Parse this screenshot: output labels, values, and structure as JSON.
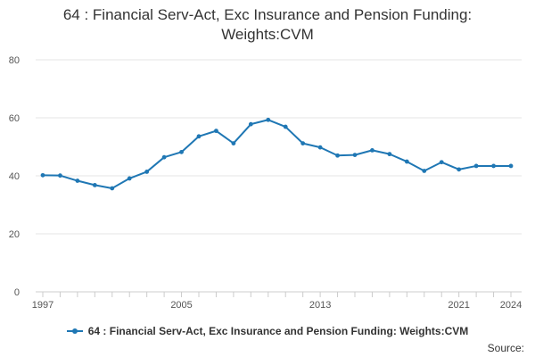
{
  "chart_data": {
    "type": "line",
    "title_line1": "64 : Financial Serv-Act, Exc Insurance and Pension Funding:",
    "title_line2": "Weights:CVM",
    "xlabel": "",
    "ylabel": "",
    "x_tick_labels": [
      "1997",
      "2005",
      "2013",
      "2021",
      "2024"
    ],
    "x_ticks": [
      1997,
      2005,
      2013,
      2021,
      2024
    ],
    "y_tick_labels": [
      "0",
      "20",
      "40",
      "60",
      "80"
    ],
    "y_ticks": [
      0,
      20,
      40,
      60,
      80
    ],
    "xlim": [
      1997,
      2024
    ],
    "ylim": [
      0,
      80
    ],
    "grid": "horizontal",
    "legend_position": "bottom",
    "series": [
      {
        "name": "64 : Financial Serv-Act, Exc Insurance and Pension Funding: Weights:CVM",
        "color": "#1f77b4",
        "x": [
          1997,
          1998,
          1999,
          2000,
          2001,
          2002,
          2003,
          2004,
          2005,
          2006,
          2007,
          2008,
          2009,
          2010,
          2011,
          2012,
          2013,
          2014,
          2015,
          2016,
          2017,
          2018,
          2019,
          2020,
          2021,
          2022,
          2023,
          2024
        ],
        "values": [
          40.2,
          40.1,
          38.3,
          36.8,
          35.7,
          39.1,
          41.4,
          46.4,
          48.2,
          53.6,
          55.5,
          51.2,
          57.8,
          59.3,
          56.9,
          51.2,
          49.8,
          47.0,
          47.2,
          48.8,
          47.5,
          44.9,
          41.7,
          44.7,
          42.2,
          43.4,
          43.4,
          43.4
        ]
      }
    ]
  },
  "legend": {
    "label": "64 : Financial Serv-Act, Exc Insurance and Pension Funding: Weights:CVM"
  },
  "source_label": "Source:"
}
